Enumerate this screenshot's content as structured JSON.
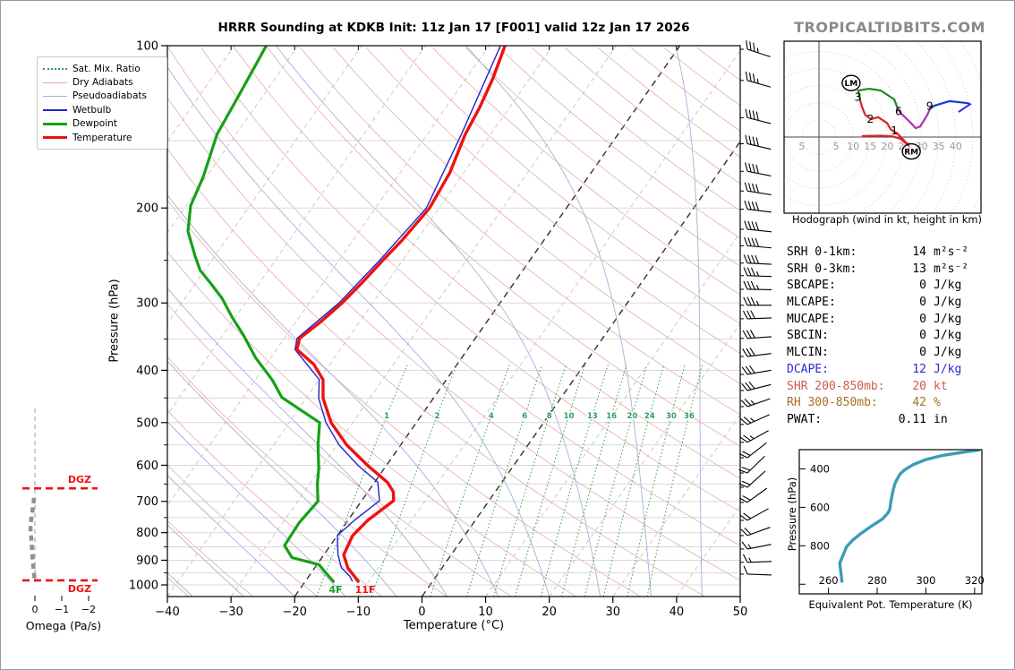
{
  "header": {
    "title": "HRRR Sounding at KDKB Init: 11z Jan 17 [F001] valid 12z Jan 17 2026"
  },
  "logo": {
    "text": "TROPICALTIDBITS.COM"
  },
  "legend": {
    "items": [
      {
        "label": "Sat. Mix. Ratio",
        "color": "#2e9e5b",
        "style": "dotted",
        "width": 2
      },
      {
        "label": "Dry Adiabats",
        "color": "#e8a9a9",
        "style": "solid",
        "width": 1.5
      },
      {
        "label": "Pseudoadiabats",
        "color": "#a9aede",
        "style": "solid",
        "width": 1.5
      },
      {
        "label": "Wetbulb",
        "color": "#2222cc",
        "style": "solid",
        "width": 2
      },
      {
        "label": "Dewpoint",
        "color": "#17a017",
        "style": "solid",
        "width": 3
      },
      {
        "label": "Temperature",
        "color": "#ee1111",
        "style": "solid",
        "width": 3
      }
    ]
  },
  "stats": {
    "rows": [
      {
        "label": "SRH 0-1km:",
        "value": "14",
        "unit": "m²s⁻²",
        "color": "#000000"
      },
      {
        "label": "SRH 0-3km:",
        "value": "13",
        "unit": "m²s⁻²",
        "color": "#000000"
      },
      {
        "label": "SBCAPE:",
        "value": "0",
        "unit": "J/kg",
        "color": "#000000"
      },
      {
        "label": "MLCAPE:",
        "value": "0",
        "unit": "J/kg",
        "color": "#000000"
      },
      {
        "label": "MUCAPE:",
        "value": "0",
        "unit": "J/kg",
        "color": "#000000"
      },
      {
        "label": "SBCIN:",
        "value": "0",
        "unit": "J/kg",
        "color": "#000000"
      },
      {
        "label": "MLCIN:",
        "value": "0",
        "unit": "J/kg",
        "color": "#000000"
      },
      {
        "label": "DCAPE:",
        "value": "12",
        "unit": "J/kg",
        "color": "#2a2ad4"
      },
      {
        "label": "SHR 200-850mb:",
        "value": "20",
        "unit": "kt",
        "color": "#cd5a50"
      },
      {
        "label": "RH 300-850mb:",
        "value": "42",
        "unit": "%",
        "color": "#a6701d"
      },
      {
        "label": "PWAT:",
        "value": "0.11",
        "unit": "in",
        "color": "#000000"
      }
    ]
  },
  "chart_data": {
    "type": "skewt-sounding",
    "skewt": {
      "xlabel": "Temperature (°C)",
      "ylabel": "Pressure (hPa)",
      "pressure_ticks": [
        100,
        200,
        300,
        400,
        500,
        600,
        700,
        800,
        900,
        1000
      ],
      "temperature_ticks": [
        -40,
        -30,
        -20,
        -10,
        0,
        10,
        20,
        30,
        40,
        50
      ],
      "p_range": [
        100,
        1063
      ],
      "t_range": [
        -40,
        50
      ],
      "isotherm_step": 10,
      "highlighted_isotherms": [
        0,
        -20
      ],
      "mixing_ratio_lines": [
        1,
        2,
        4,
        6,
        8,
        10,
        13,
        16,
        20,
        24,
        30,
        36
      ],
      "surface_temp_label": "11F",
      "surface_dewpoint_label": "4F",
      "temperature_profile": [
        [
          100,
          -47.5
        ],
        [
          115,
          -45.8
        ],
        [
          130,
          -44.7
        ],
        [
          146,
          -44.0
        ],
        [
          172,
          -42.2
        ],
        [
          200,
          -41.5
        ],
        [
          230,
          -42.3
        ],
        [
          250,
          -43.1
        ],
        [
          275,
          -43.9
        ],
        [
          300,
          -44.8
        ],
        [
          325,
          -46.1
        ],
        [
          349,
          -47.6
        ],
        [
          366,
          -46.8
        ],
        [
          390,
          -42.5
        ],
        [
          416,
          -39.4
        ],
        [
          451,
          -37.3
        ],
        [
          500,
          -33.4
        ],
        [
          550,
          -28.5
        ],
        [
          600,
          -23.0
        ],
        [
          645,
          -18.0
        ],
        [
          672,
          -16.0
        ],
        [
          698,
          -15.0
        ],
        [
          759,
          -16.9
        ],
        [
          810,
          -17.6
        ],
        [
          879,
          -16.9
        ],
        [
          930,
          -14.8
        ],
        [
          963,
          -12.9
        ],
        [
          985,
          -11.7
        ]
      ],
      "dewpoint_profile": [
        [
          100,
          -85.0
        ],
        [
          120,
          -84.0
        ],
        [
          146,
          -83.0
        ],
        [
          175,
          -80.5
        ],
        [
          198,
          -79.3
        ],
        [
          221,
          -76.9
        ],
        [
          246,
          -73.0
        ],
        [
          261,
          -70.7
        ],
        [
          276,
          -67.6
        ],
        [
          294,
          -64.2
        ],
        [
          319,
          -60.5
        ],
        [
          344,
          -56.8
        ],
        [
          379,
          -52.4
        ],
        [
          417,
          -47.3
        ],
        [
          449,
          -43.9
        ],
        [
          500,
          -35.2
        ],
        [
          550,
          -33.0
        ],
        [
          608,
          -30.3
        ],
        [
          650,
          -28.8
        ],
        [
          700,
          -26.8
        ],
        [
          767,
          -27.4
        ],
        [
          845,
          -27.2
        ],
        [
          890,
          -24.7
        ],
        [
          917,
          -19.7
        ],
        [
          940,
          -18.3
        ],
        [
          985,
          -15.6
        ]
      ],
      "wetbulb_profile": [
        [
          100,
          -48.2
        ],
        [
          146,
          -44.6
        ],
        [
          200,
          -42.0
        ],
        [
          250,
          -43.6
        ],
        [
          300,
          -45.3
        ],
        [
          349,
          -48.0
        ],
        [
          366,
          -47.1
        ],
        [
          416,
          -40.0
        ],
        [
          451,
          -38.0
        ],
        [
          500,
          -34.2
        ],
        [
          550,
          -29.7
        ],
        [
          600,
          -24.5
        ],
        [
          645,
          -19.5
        ],
        [
          698,
          -17.2
        ],
        [
          759,
          -19.0
        ],
        [
          810,
          -20.0
        ],
        [
          879,
          -17.8
        ],
        [
          930,
          -15.8
        ],
        [
          963,
          -13.6
        ],
        [
          985,
          -12.6
        ]
      ],
      "colors": {
        "temperature": "#ee1111",
        "dewpoint": "#17a017",
        "wetbulb": "#2222cc",
        "dry_adiabat": "#eab4b4",
        "pseudoadiabat": "#a9aede",
        "mixing_ratio": "#2e9e5b",
        "isotherm": "#c4c4c4",
        "isotherm_bold": "#303030",
        "gridline": "#d9d9d9"
      }
    },
    "wind_barbs": [
      [
        100,
        35,
        288
      ],
      [
        116,
        36,
        286
      ],
      [
        136,
        38,
        284
      ],
      [
        152,
        38,
        283
      ],
      [
        171,
        40,
        281
      ],
      [
        186,
        42,
        279
      ],
      [
        201,
        40,
        277
      ],
      [
        219,
        40,
        276
      ],
      [
        235,
        38,
        275
      ],
      [
        253,
        38,
        273
      ],
      [
        267,
        35,
        272
      ],
      [
        283,
        35,
        271
      ],
      [
        303,
        35,
        270
      ],
      [
        321,
        32,
        268
      ],
      [
        349,
        32,
        266
      ],
      [
        377,
        30,
        263
      ],
      [
        407,
        30,
        260
      ],
      [
        436,
        28,
        256
      ],
      [
        467,
        25,
        251
      ],
      [
        504,
        25,
        246
      ],
      [
        544,
        25,
        241
      ],
      [
        581,
        22,
        232
      ],
      [
        620,
        20,
        226
      ],
      [
        659,
        20,
        228
      ],
      [
        703,
        20,
        234
      ],
      [
        759,
        18,
        241
      ],
      [
        810,
        18,
        250
      ],
      [
        858,
        15,
        259
      ],
      [
        908,
        15,
        268
      ],
      [
        955,
        10,
        272
      ]
    ],
    "omega": {
      "xlabel": "Omega (Pa/s)",
      "ticks": [
        0,
        -1,
        -2
      ],
      "dgz_label": "DGZ",
      "dgz_top_p": 662,
      "dgz_bottom_p": 981,
      "profile": [
        [
          690,
          0.03
        ],
        [
          715,
          0.07
        ],
        [
          745,
          0.12
        ],
        [
          775,
          0.17
        ],
        [
          805,
          0.15
        ],
        [
          840,
          0.12
        ],
        [
          875,
          0.1
        ],
        [
          910,
          0.07
        ],
        [
          945,
          0.04
        ],
        [
          980,
          0.01
        ]
      ],
      "color": "#909090",
      "dgz_color": "#ee1111"
    },
    "hodograph": {
      "caption": "Hodograph (wind in kt, height in km)",
      "ring_step_kt": 5,
      "axis_labels": [
        {
          "u": -5,
          "label": "5"
        },
        {
          "u": 5,
          "label": "5"
        },
        {
          "u": 10,
          "label": "10"
        },
        {
          "u": 15,
          "label": "15"
        },
        {
          "u": 20,
          "label": "20"
        },
        {
          "u": 25,
          "label": "25"
        },
        {
          "u": 30,
          "label": "30"
        },
        {
          "u": 35,
          "label": "35"
        },
        {
          "u": 40,
          "label": "40"
        }
      ],
      "segments": [
        {
          "color": "#dd2222",
          "points": [
            [
              12.8,
              0.3
            ],
            [
              18.0,
              0.4
            ],
            [
              21.5,
              0.2
            ],
            [
              23.8,
              -0.5
            ],
            [
              26.4,
              -2.6
            ],
            [
              23.0,
              1.0
            ],
            [
              21.0,
              2.2
            ],
            [
              19.9,
              4.1
            ],
            [
              17.3,
              5.8
            ],
            [
              15.2,
              5.2
            ],
            [
              13.5,
              6.5
            ],
            [
              12.5,
              9.0
            ],
            [
              12.0,
              11.0
            ]
          ]
        },
        {
          "color": "#1e8c1e",
          "points": [
            [
              12.0,
              11.0
            ],
            [
              11.5,
              13.6
            ],
            [
              14.7,
              14.1
            ],
            [
              18.1,
              13.6
            ],
            [
              22.0,
              11.0
            ],
            [
              23.0,
              8.4
            ]
          ]
        },
        {
          "color": "#b030b0",
          "points": [
            [
              23.0,
              8.4
            ],
            [
              23.8,
              7.1
            ],
            [
              27.0,
              4.0
            ],
            [
              28.3,
              2.6
            ],
            [
              29.6,
              3.1
            ],
            [
              31.7,
              6.5
            ],
            [
              32.5,
              8.4
            ]
          ]
        },
        {
          "color": "#2233dd",
          "points": [
            [
              32.5,
              8.4
            ],
            [
              33.8,
              9.2
            ],
            [
              38.2,
              10.5
            ],
            [
              43.5,
              9.9
            ]
          ]
        }
      ],
      "arrow": [
        [
          43.5,
          9.9
        ],
        [
          44.2,
          9.6
        ],
        [
          40.8,
          7.3
        ]
      ],
      "height_labels": [
        {
          "t": "1",
          "u": 22.0,
          "v": 1.8
        },
        {
          "t": "2",
          "u": 15.0,
          "v": 5.3
        },
        {
          "t": "3",
          "u": 11.4,
          "v": 11.6
        },
        {
          "t": "6",
          "u": 23.3,
          "v": 7.4
        },
        {
          "t": "9",
          "u": 32.4,
          "v": 9.0
        }
      ],
      "markers": [
        {
          "t": "LM",
          "u": 9.4,
          "v": 15.8
        },
        {
          "t": "RM",
          "u": 27.0,
          "v": -4.2
        }
      ]
    },
    "theta_e": {
      "xlabel": "Equivalent Pot. Temperature (K)",
      "ylabel": "Pressure (hPa)",
      "x_ticks": [
        260,
        280,
        300,
        320
      ],
      "y_ticks": [
        400,
        600,
        800
      ],
      "x_range": [
        248,
        323
      ],
      "p_range": [
        300,
        1050
      ],
      "color": "#3d9ab8",
      "curve": [
        [
          265.5,
          985
        ],
        [
          265.2,
          950
        ],
        [
          264.6,
          890
        ],
        [
          265.6,
          860
        ],
        [
          267.4,
          805
        ],
        [
          270.0,
          770
        ],
        [
          272.9,
          740
        ],
        [
          277.6,
          698
        ],
        [
          282.1,
          661
        ],
        [
          284.4,
          630
        ],
        [
          285.2,
          610
        ],
        [
          285.5,
          580
        ],
        [
          286.0,
          545
        ],
        [
          286.6,
          507
        ],
        [
          287.5,
          470
        ],
        [
          288.3,
          451
        ],
        [
          289.5,
          425
        ],
        [
          291.3,
          405
        ],
        [
          294.9,
          377
        ],
        [
          299.7,
          353
        ],
        [
          303.0,
          342
        ],
        [
          307.0,
          330
        ],
        [
          311.9,
          320
        ],
        [
          315.9,
          312
        ],
        [
          321.8,
          302
        ]
      ]
    }
  }
}
